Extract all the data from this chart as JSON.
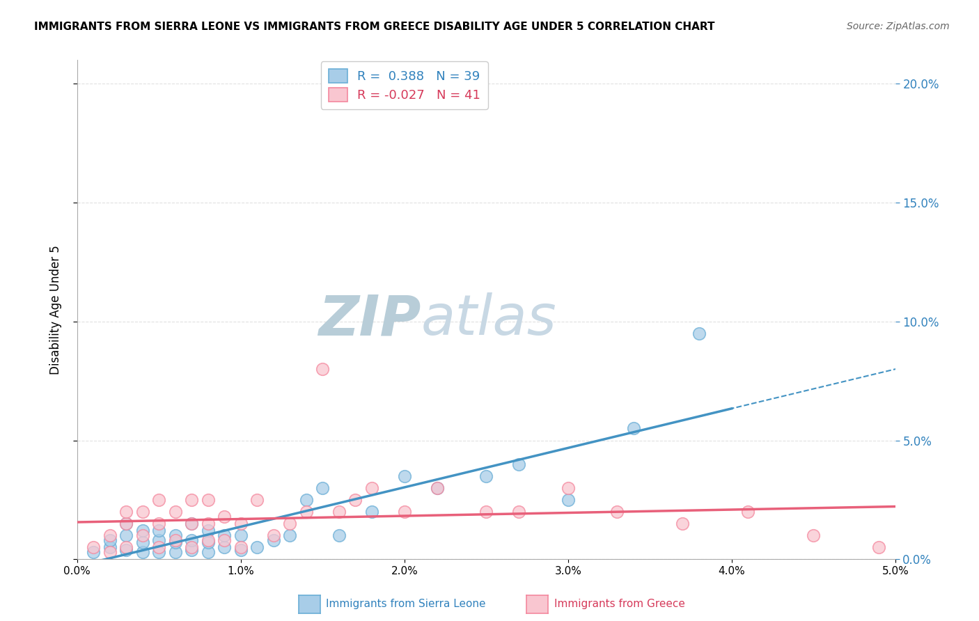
{
  "title": "IMMIGRANTS FROM SIERRA LEONE VS IMMIGRANTS FROM GREECE DISABILITY AGE UNDER 5 CORRELATION CHART",
  "source": "Source: ZipAtlas.com",
  "ylabel": "Disability Age Under 5",
  "legend_label1": "Immigrants from Sierra Leone",
  "legend_label2": "Immigrants from Greece",
  "R1": 0.388,
  "N1": 39,
  "R2": -0.027,
  "N2": 41,
  "color_blue": "#a8cde8",
  "color_pink": "#f9c6d0",
  "color_blue_edge": "#6aaed6",
  "color_pink_edge": "#f4889e",
  "color_blue_line": "#4393c3",
  "color_pink_line": "#e8607a",
  "color_blue_text": "#3182bd",
  "color_pink_text": "#d63a5a",
  "color_right_axis": "#3182bd",
  "watermark_color": "#ccd9e8",
  "sierra_leone_x": [
    0.001,
    0.002,
    0.002,
    0.003,
    0.003,
    0.003,
    0.004,
    0.004,
    0.004,
    0.005,
    0.005,
    0.005,
    0.006,
    0.006,
    0.006,
    0.007,
    0.007,
    0.007,
    0.008,
    0.008,
    0.008,
    0.009,
    0.009,
    0.01,
    0.01,
    0.011,
    0.012,
    0.013,
    0.014,
    0.015,
    0.016,
    0.018,
    0.02,
    0.022,
    0.025,
    0.027,
    0.03,
    0.034,
    0.038
  ],
  "sierra_leone_y": [
    0.003,
    0.005,
    0.008,
    0.004,
    0.01,
    0.015,
    0.003,
    0.007,
    0.012,
    0.003,
    0.008,
    0.012,
    0.003,
    0.007,
    0.01,
    0.004,
    0.008,
    0.015,
    0.003,
    0.007,
    0.012,
    0.005,
    0.01,
    0.004,
    0.01,
    0.005,
    0.008,
    0.01,
    0.025,
    0.03,
    0.01,
    0.02,
    0.035,
    0.03,
    0.035,
    0.04,
    0.025,
    0.055,
    0.095
  ],
  "greece_x": [
    0.001,
    0.002,
    0.002,
    0.003,
    0.003,
    0.003,
    0.004,
    0.004,
    0.005,
    0.005,
    0.005,
    0.006,
    0.006,
    0.007,
    0.007,
    0.007,
    0.008,
    0.008,
    0.008,
    0.009,
    0.009,
    0.01,
    0.01,
    0.011,
    0.012,
    0.013,
    0.014,
    0.015,
    0.016,
    0.017,
    0.018,
    0.02,
    0.022,
    0.025,
    0.027,
    0.03,
    0.033,
    0.037,
    0.041,
    0.045,
    0.049
  ],
  "greece_y": [
    0.005,
    0.003,
    0.01,
    0.005,
    0.015,
    0.02,
    0.01,
    0.02,
    0.005,
    0.015,
    0.025,
    0.008,
    0.02,
    0.005,
    0.015,
    0.025,
    0.008,
    0.015,
    0.025,
    0.008,
    0.018,
    0.005,
    0.015,
    0.025,
    0.01,
    0.015,
    0.02,
    0.08,
    0.02,
    0.025,
    0.03,
    0.02,
    0.03,
    0.02,
    0.02,
    0.03,
    0.02,
    0.015,
    0.02,
    0.01,
    0.005
  ],
  "xlim": [
    0.0,
    0.05
  ],
  "ylim": [
    0.0,
    0.21
  ],
  "xticks": [
    0.0,
    0.01,
    0.02,
    0.03,
    0.04,
    0.05
  ],
  "yticks": [
    0.0,
    0.05,
    0.1,
    0.15,
    0.2
  ],
  "background_color": "#ffffff"
}
